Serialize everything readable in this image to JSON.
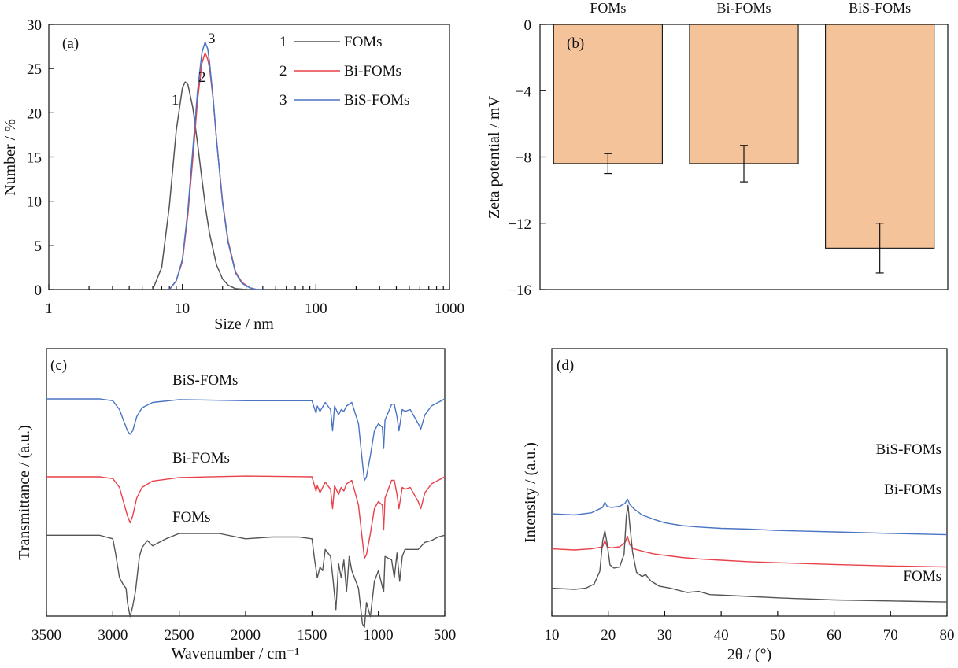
{
  "chart_data": [
    {
      "panel": "(a)",
      "type": "line",
      "xlabel": "Size / nm",
      "ylabel": "Number / %",
      "xscale": "log",
      "xlim": [
        1,
        1000
      ],
      "ylim": [
        0,
        30
      ],
      "xticks": [
        "1",
        "10",
        "100",
        "1000"
      ],
      "yticks": [
        "0",
        "5",
        "10",
        "15",
        "20",
        "25",
        "30"
      ],
      "legend_position": "top-right",
      "legend": [
        {
          "num": "1",
          "label": "FOMs",
          "color": "#555555"
        },
        {
          "num": "2",
          "label": "Bi-FOMs",
          "color": "#e8414a"
        },
        {
          "num": "3",
          "label": "BiS-FOMs",
          "color": "#4a74c4"
        }
      ],
      "series": [
        {
          "name": "FOMs",
          "label_num": "1",
          "color": "#555555",
          "x": [
            6.0,
            7.0,
            8.0,
            9.0,
            10.0,
            10.5,
            11.0,
            12.0,
            13.0,
            14.0,
            15.0,
            16.0,
            18.0,
            20.0,
            22.0,
            25.0,
            30.0,
            35.0
          ],
          "y": [
            0,
            2.5,
            9.5,
            18.0,
            22.8,
            23.5,
            23.2,
            20.5,
            16.5,
            12.5,
            9.0,
            6.3,
            2.8,
            1.2,
            0.5,
            0.1,
            0,
            0
          ]
        },
        {
          "name": "Bi-FOMs",
          "label_num": "2",
          "color": "#e8414a",
          "x": [
            8.0,
            9.0,
            10.0,
            11.0,
            12.0,
            13.0,
            14.0,
            14.8,
            15.5,
            16.0,
            17.0,
            18.0,
            20.0,
            22.0,
            25.0,
            28.0,
            32.0,
            36.0,
            40.0
          ],
          "y": [
            0,
            1.0,
            3.2,
            8.5,
            15.0,
            21.5,
            25.6,
            26.8,
            26.0,
            25.0,
            21.5,
            17.0,
            10.0,
            5.5,
            2.0,
            0.8,
            0.2,
            0,
            0
          ]
        },
        {
          "name": "BiS-FOMs",
          "label_num": "3",
          "color": "#4a74c4",
          "x": [
            8.0,
            9.0,
            10.0,
            11.0,
            12.0,
            13.0,
            14.0,
            14.8,
            15.5,
            16.0,
            17.0,
            18.0,
            20.0,
            22.0,
            25.0,
            28.0,
            32.0,
            36.0,
            40.0
          ],
          "y": [
            0,
            1.0,
            3.4,
            9.0,
            16.0,
            22.5,
            26.8,
            28.0,
            27.2,
            25.6,
            21.6,
            17.0,
            9.8,
            5.3,
            1.9,
            0.7,
            0.2,
            0,
            0
          ]
        }
      ]
    },
    {
      "panel": "(b)",
      "type": "bar",
      "ylabel": "Zeta potential / mV",
      "ylim": [
        -16,
        0
      ],
      "yticks": [
        "0",
        "−4",
        "−8",
        "−12",
        "−16"
      ],
      "categories": [
        "FOMs",
        "Bi-FOMs",
        "BiS-FOMs"
      ],
      "category_position": "top",
      "values": [
        -8.4,
        -8.4,
        -13.5
      ],
      "errors": [
        0.6,
        1.1,
        1.5
      ],
      "bar_color": "#f5c39a"
    },
    {
      "panel": "(c)",
      "type": "line",
      "xlabel": "Wavenumber / cm⁻¹",
      "ylabel": "Transmittance / (a.u.)",
      "xlim": [
        3500,
        500
      ],
      "xticks": [
        "3500",
        "3000",
        "2500",
        "2000",
        "1500",
        "1000",
        "500"
      ],
      "y_ticks_shown": false,
      "series": [
        {
          "name": "BiS-FOMs",
          "color": "#4a74c4",
          "offset": 2.2,
          "x": [
            3500,
            3100,
            3000,
            2950,
            2920,
            2890,
            2870,
            2850,
            2820,
            2780,
            2700,
            2500,
            2000,
            1500,
            1470,
            1460,
            1440,
            1400,
            1360,
            1345,
            1330,
            1300,
            1280,
            1260,
            1240,
            1200,
            1150,
            1120,
            1105,
            1090,
            1060,
            1030,
            1000,
            970,
            960,
            950,
            900,
            880,
            860,
            845,
            820,
            800,
            760,
            700,
            680,
            650,
            600,
            550,
            500
          ],
          "y": [
            0,
            0,
            -0.05,
            -0.3,
            -0.6,
            -0.9,
            -1.0,
            -0.9,
            -0.5,
            -0.25,
            -0.1,
            -0.02,
            -0.05,
            -0.05,
            -0.4,
            -0.2,
            -0.35,
            -0.1,
            -0.3,
            -0.9,
            -0.2,
            -0.45,
            -0.3,
            -0.35,
            -0.2,
            -0.1,
            -0.7,
            -1.8,
            -2.3,
            -2.2,
            -1.6,
            -0.9,
            -0.7,
            -0.8,
            -1.4,
            -0.6,
            -0.15,
            -0.15,
            -0.5,
            -0.9,
            -0.3,
            -0.35,
            -0.3,
            -0.7,
            -0.85,
            -0.45,
            -0.2,
            -0.1,
            0
          ]
        },
        {
          "name": "Bi-FOMs",
          "color": "#e8414a",
          "offset": 0,
          "x": [
            3500,
            3100,
            3000,
            2950,
            2920,
            2890,
            2870,
            2850,
            2820,
            2780,
            2700,
            2500,
            2000,
            1500,
            1470,
            1460,
            1440,
            1400,
            1360,
            1345,
            1330,
            1300,
            1280,
            1260,
            1240,
            1200,
            1150,
            1120,
            1105,
            1090,
            1060,
            1030,
            1000,
            970,
            960,
            950,
            900,
            880,
            860,
            845,
            820,
            800,
            760,
            700,
            680,
            650,
            600,
            550,
            500
          ],
          "y": [
            0,
            0,
            -0.05,
            -0.3,
            -0.7,
            -1.1,
            -1.3,
            -1.1,
            -0.6,
            -0.3,
            -0.12,
            -0.02,
            0.02,
            0.0,
            -0.4,
            -0.25,
            -0.45,
            -0.15,
            -0.35,
            -0.9,
            -0.25,
            -0.5,
            -0.3,
            -0.4,
            -0.2,
            -0.1,
            -0.8,
            -1.8,
            -2.3,
            -2.2,
            -1.6,
            -0.9,
            -0.7,
            -0.8,
            -1.5,
            -0.6,
            -0.1,
            -0.1,
            -0.5,
            -0.9,
            -0.3,
            -0.35,
            -0.3,
            -0.7,
            -0.9,
            -0.45,
            -0.2,
            -0.1,
            0
          ]
        },
        {
          "name": "FOMs",
          "color": "#555555",
          "offset": -1.65,
          "x": [
            3500,
            3100,
            3000,
            2980,
            2950,
            2920,
            2900,
            2890,
            2870,
            2850,
            2830,
            2800,
            2780,
            2740,
            2700,
            2600,
            2500,
            2200,
            2000,
            1800,
            1600,
            1500,
            1480,
            1460,
            1440,
            1420,
            1400,
            1360,
            1340,
            1320,
            1300,
            1280,
            1260,
            1240,
            1220,
            1200,
            1150,
            1120,
            1105,
            1090,
            1060,
            1030,
            1000,
            980,
            960,
            950,
            900,
            880,
            860,
            840,
            820,
            800,
            700,
            650,
            600,
            550,
            500
          ],
          "y": [
            0,
            0,
            -0.1,
            -0.5,
            -1.2,
            -1.4,
            -1.5,
            -1.9,
            -2.3,
            -2.0,
            -1.6,
            -0.6,
            -0.35,
            -0.15,
            -0.3,
            -0.1,
            0.05,
            0.05,
            -0.1,
            -0.05,
            -0.05,
            -0.1,
            -0.7,
            -1.2,
            -0.9,
            -1.0,
            -0.4,
            -0.6,
            -1.3,
            -2.1,
            -0.8,
            -1.2,
            -0.7,
            -1.6,
            -0.6,
            -1.0,
            -1.5,
            -2.5,
            -2.6,
            -1.9,
            -2.3,
            -1.3,
            -1.0,
            -1.3,
            -1.6,
            -0.6,
            -0.7,
            -1.2,
            -0.5,
            -1.3,
            -0.6,
            -0.4,
            -0.4,
            -0.2,
            -0.15,
            -0.05,
            0
          ]
        }
      ]
    },
    {
      "panel": "(d)",
      "type": "line",
      "xlabel": "2θ / (°)",
      "ylabel": "Intensity / (a.u.)",
      "xlim": [
        10,
        80
      ],
      "xticks": [
        "10",
        "20",
        "30",
        "40",
        "50",
        "60",
        "70",
        "80"
      ],
      "y_ticks_shown": false,
      "series": [
        {
          "name": "BiS-FOMs",
          "color": "#4a74c4",
          "offset": 3.2,
          "x": [
            10,
            14,
            17,
            19,
            19.4,
            19.8,
            20.5,
            22,
            23.0,
            23.4,
            23.8,
            24.5,
            26,
            28,
            30,
            33,
            36,
            40,
            45,
            50,
            60,
            70,
            80
          ],
          "y": [
            1.5,
            1.45,
            1.55,
            1.8,
            2.05,
            1.85,
            1.8,
            1.85,
            2.0,
            2.2,
            1.95,
            1.75,
            1.45,
            1.25,
            1.08,
            0.95,
            0.88,
            0.82,
            0.78,
            0.72,
            0.65,
            0.58,
            0.52
          ]
        },
        {
          "name": "Bi-FOMs",
          "color": "#e8414a",
          "offset": 1.7,
          "x": [
            10,
            14,
            17,
            19,
            19.4,
            19.8,
            20.5,
            22,
            23.0,
            23.4,
            23.8,
            24.5,
            26,
            28,
            30,
            33,
            36,
            40,
            45,
            50,
            60,
            70,
            80
          ],
          "y": [
            1.35,
            1.3,
            1.35,
            1.45,
            1.75,
            1.45,
            1.4,
            1.45,
            1.65,
            1.95,
            1.55,
            1.35,
            1.25,
            1.12,
            1.05,
            0.95,
            0.88,
            0.82,
            0.75,
            0.7,
            0.62,
            0.55,
            0.5
          ]
        },
        {
          "name": "FOMs",
          "color": "#555555",
          "offset": 0,
          "x": [
            10,
            14,
            16,
            17.5,
            18.5,
            19.0,
            19.4,
            19.8,
            20.3,
            21,
            22,
            22.8,
            23.2,
            23.5,
            23.8,
            24.3,
            25,
            26,
            26.6,
            27.5,
            29,
            31,
            34,
            36,
            38,
            42,
            50,
            60,
            70,
            80
          ],
          "y": [
            1.2,
            1.15,
            1.2,
            1.4,
            2.0,
            3.4,
            3.9,
            3.3,
            2.3,
            2.15,
            2.2,
            2.8,
            4.6,
            5.1,
            4.2,
            2.9,
            1.95,
            1.75,
            1.85,
            1.55,
            1.3,
            1.2,
            1.0,
            1.05,
            0.9,
            0.85,
            0.75,
            0.65,
            0.6,
            0.55
          ]
        }
      ]
    }
  ],
  "panel_a": {
    "tag": "(a)",
    "curve_labels": [
      "1",
      "2",
      "3"
    ]
  },
  "panel_b": {
    "tag": "(b)"
  },
  "panel_c": {
    "tag": "(c)",
    "labels": [
      "BiS-FOMs",
      "Bi-FOMs",
      "FOMs"
    ]
  },
  "panel_d": {
    "tag": "(d)",
    "labels": [
      "BiS-FOMs",
      "Bi-FOMs",
      "FOMs"
    ]
  }
}
